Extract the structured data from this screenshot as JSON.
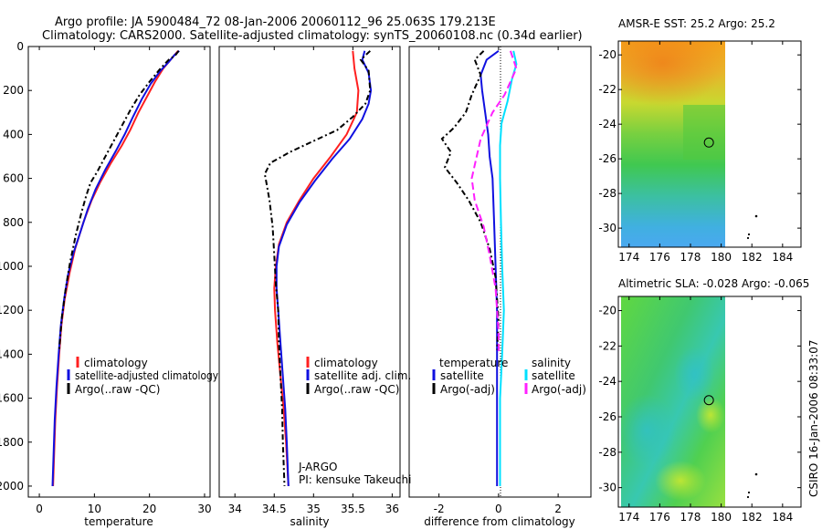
{
  "header": {
    "line1": "Argo profile: JA 5900484_72 08-Jan-2006 20060112_96 25.063S 179.213E",
    "line2": "Climatology: CARS2000. Satellite-adjusted climatology: synTS_20060108.nc (0.34d earlier)"
  },
  "side_label": "CSIRO 16-Jan-2006 08:33:07",
  "pi_block": {
    "line1": "J-ARGO",
    "line2": "PI: kensuke Takeuchi"
  },
  "colors": {
    "red": "#ff2020",
    "blue": "#1010e0",
    "black": "#000000",
    "cyan": "#00e0ff",
    "magenta": "#ff20ff"
  },
  "chart_data": [
    {
      "type": "line",
      "id": "temperature",
      "xlabel": "temperature",
      "ylabel": "",
      "xlim": [
        -2,
        31
      ],
      "ylim": [
        2050,
        0
      ],
      "xticks": [
        0,
        10,
        20,
        30
      ],
      "yticks": [
        0,
        200,
        400,
        600,
        800,
        1000,
        1200,
        1400,
        1600,
        1800,
        2000
      ],
      "legend": [
        "climatology",
        "satellite-adjusted climatology",
        "Argo(..raw -QC)"
      ],
      "series": [
        {
          "name": "climatology",
          "color": "red",
          "dash": "",
          "points": [
            [
              25.2,
              20
            ],
            [
              24.5,
              40
            ],
            [
              23.5,
              70
            ],
            [
              22.5,
              100
            ],
            [
              21,
              160
            ],
            [
              19.5,
              230
            ],
            [
              18,
              300
            ],
            [
              16.5,
              380
            ],
            [
              15,
              450
            ],
            [
              13,
              530
            ],
            [
              11,
              620
            ],
            [
              9.5,
              700
            ],
            [
              8,
              800
            ],
            [
              6.5,
              920
            ],
            [
              5.5,
              1030
            ],
            [
              4.6,
              1150
            ],
            [
              4,
              1270
            ],
            [
              3.6,
              1400
            ],
            [
              3.2,
              1550
            ],
            [
              2.9,
              1700
            ],
            [
              2.7,
              1850
            ],
            [
              2.5,
              2000
            ]
          ]
        },
        {
          "name": "satellite-adjusted climatology",
          "color": "blue",
          "dash": "",
          "points": [
            [
              25.4,
              20
            ],
            [
              24.5,
              40
            ],
            [
              23.5,
              70
            ],
            [
              22,
              110
            ],
            [
              20.2,
              170
            ],
            [
              18.6,
              240
            ],
            [
              17,
              320
            ],
            [
              15.5,
              400
            ],
            [
              14,
              470
            ],
            [
              12,
              560
            ],
            [
              10.2,
              650
            ],
            [
              8.8,
              740
            ],
            [
              7.5,
              840
            ],
            [
              6.2,
              940
            ],
            [
              5.2,
              1040
            ],
            [
              4.5,
              1150
            ],
            [
              3.9,
              1270
            ],
            [
              3.5,
              1400
            ],
            [
              3.1,
              1550
            ],
            [
              2.8,
              1700
            ],
            [
              2.6,
              1850
            ],
            [
              2.4,
              2000
            ]
          ]
        },
        {
          "name": "Argo(..raw -QC)",
          "color": "black",
          "dash": "6,3,2,3",
          "points": [
            [
              25.3,
              20
            ],
            [
              24.7,
              40
            ],
            [
              23.5,
              60
            ],
            [
              22,
              100
            ],
            [
              20,
              160
            ],
            [
              18.2,
              220
            ],
            [
              16.5,
              290
            ],
            [
              15,
              360
            ],
            [
              13.5,
              430
            ],
            [
              12,
              500
            ],
            [
              10.5,
              570
            ],
            [
              9.3,
              620
            ],
            [
              8.5,
              680
            ],
            [
              7.6,
              760
            ],
            [
              6.6,
              860
            ],
            [
              5.6,
              980
            ],
            [
              4.8,
              1100
            ],
            [
              4.1,
              1230
            ],
            [
              3.6,
              1380
            ]
          ]
        }
      ]
    },
    {
      "type": "line",
      "id": "salinity",
      "xlabel": "salinity",
      "ylabel": "",
      "xlim": [
        33.8,
        36.1
      ],
      "ylim": [
        2050,
        0
      ],
      "xticks": [
        34,
        34.5,
        35,
        35.5,
        36
      ],
      "yticks": [],
      "legend": [
        "climatology",
        "satellite adj. clim.",
        "Argo(..raw -QC)"
      ],
      "series": [
        {
          "name": "climatology",
          "color": "red",
          "dash": "",
          "points": [
            [
              35.5,
              20
            ],
            [
              35.52,
              100
            ],
            [
              35.57,
              200
            ],
            [
              35.55,
              300
            ],
            [
              35.42,
              400
            ],
            [
              35.22,
              500
            ],
            [
              35.0,
              600
            ],
            [
              34.82,
              700
            ],
            [
              34.66,
              800
            ],
            [
              34.56,
              900
            ],
            [
              34.52,
              1000
            ],
            [
              34.5,
              1100
            ],
            [
              34.51,
              1200
            ],
            [
              34.54,
              1350
            ],
            [
              34.58,
              1500
            ],
            [
              34.62,
              1650
            ],
            [
              34.65,
              1800
            ],
            [
              34.68,
              2000
            ]
          ]
        },
        {
          "name": "satellite adj. clim.",
          "color": "blue",
          "dash": "",
          "points": [
            [
              35.65,
              20
            ],
            [
              35.62,
              60
            ],
            [
              35.7,
              120
            ],
            [
              35.73,
              200
            ],
            [
              35.7,
              260
            ],
            [
              35.62,
              330
            ],
            [
              35.46,
              420
            ],
            [
              35.24,
              510
            ],
            [
              35.02,
              610
            ],
            [
              34.82,
              710
            ],
            [
              34.66,
              810
            ],
            [
              34.56,
              910
            ],
            [
              34.53,
              1000
            ],
            [
              34.53,
              1100
            ],
            [
              34.55,
              1200
            ],
            [
              34.58,
              1350
            ],
            [
              34.61,
              1500
            ],
            [
              34.64,
              1650
            ],
            [
              34.66,
              1800
            ],
            [
              34.68,
              2000
            ]
          ]
        },
        {
          "name": "Argo(..raw -QC)",
          "color": "black",
          "dash": "6,3,2,3",
          "points": [
            [
              35.72,
              20
            ],
            [
              35.6,
              60
            ],
            [
              35.7,
              110
            ],
            [
              35.72,
              200
            ],
            [
              35.66,
              260
            ],
            [
              35.5,
              320
            ],
            [
              35.3,
              380
            ],
            [
              35.0,
              430
            ],
            [
              34.7,
              480
            ],
            [
              34.45,
              530
            ],
            [
              34.38,
              580
            ],
            [
              34.4,
              620
            ],
            [
              34.44,
              700
            ],
            [
              34.48,
              820
            ],
            [
              34.5,
              950
            ],
            [
              34.52,
              1080
            ],
            [
              34.55,
              1200
            ],
            [
              34.56,
              1350
            ],
            [
              34.58,
              1500
            ],
            [
              34.6,
              1650
            ],
            [
              34.61,
              1800
            ],
            [
              34.63,
              2000
            ]
          ]
        }
      ]
    },
    {
      "type": "line",
      "id": "difference",
      "xlabel": "difference from climatology",
      "ylabel": "",
      "xlim": [
        -3,
        3.1
      ],
      "ylim": [
        2050,
        0
      ],
      "xticks": [
        -2,
        0,
        2
      ],
      "yticks": [],
      "legend_titles": [
        "temperature",
        "salinity"
      ],
      "legend": [
        "satellite",
        "Argo(-adj)",
        "satellite",
        "Argo(-adj)"
      ],
      "series": [
        {
          "name": "satellite",
          "group": "temperature",
          "color": "blue",
          "dash": "",
          "points": [
            [
              0,
              20
            ],
            [
              -0.4,
              60
            ],
            [
              -0.6,
              130
            ],
            [
              -0.55,
              200
            ],
            [
              -0.45,
              300
            ],
            [
              -0.35,
              400
            ],
            [
              -0.3,
              500
            ],
            [
              -0.2,
              600
            ],
            [
              -0.15,
              800
            ],
            [
              -0.1,
              1000
            ],
            [
              -0.05,
              1200
            ],
            [
              -0.05,
              1500
            ],
            [
              -0.05,
              2000
            ]
          ]
        },
        {
          "name": "Argo(-adj)",
          "group": "temperature",
          "color": "black",
          "dash": "6,3,2,3",
          "points": [
            [
              -0.5,
              20
            ],
            [
              -0.8,
              60
            ],
            [
              -0.6,
              130
            ],
            [
              -0.9,
              220
            ],
            [
              -1.1,
              300
            ],
            [
              -1.5,
              370
            ],
            [
              -1.9,
              420
            ],
            [
              -1.6,
              480
            ],
            [
              -1.8,
              550
            ],
            [
              -1.4,
              620
            ],
            [
              -1.0,
              700
            ],
            [
              -0.6,
              800
            ],
            [
              -0.3,
              920
            ],
            [
              -0.1,
              1050
            ],
            [
              0,
              1250
            ],
            [
              -0.05,
              1380
            ]
          ]
        },
        {
          "name": "satellite",
          "group": "salinity",
          "color": "cyan",
          "dash": "",
          "points": [
            [
              0.5,
              20
            ],
            [
              0.6,
              80
            ],
            [
              0.45,
              150
            ],
            [
              0.3,
              250
            ],
            [
              0.1,
              350
            ],
            [
              0.05,
              450
            ],
            [
              0.05,
              600
            ],
            [
              0.08,
              800
            ],
            [
              0.12,
              1000
            ],
            [
              0.18,
              1200
            ],
            [
              0.12,
              1400
            ],
            [
              0.05,
              1600
            ],
            [
              0.05,
              2000
            ]
          ]
        },
        {
          "name": "Argo(-adj)",
          "group": "salinity",
          "color": "magenta",
          "dash": "8,4",
          "points": [
            [
              0.4,
              20
            ],
            [
              0.6,
              100
            ],
            [
              0.2,
              220
            ],
            [
              -0.2,
              300
            ],
            [
              -0.6,
              420
            ],
            [
              -0.9,
              600
            ],
            [
              -0.8,
              700
            ],
            [
              -0.5,
              820
            ],
            [
              -0.3,
              950
            ],
            [
              -0.1,
              1100
            ],
            [
              0,
              1300
            ],
            [
              0,
              1400
            ]
          ]
        }
      ]
    },
    {
      "type": "heatmap",
      "id": "sst_map",
      "title": "AMSR-E SST: 25.2 Argo: 25.2",
      "xlim": [
        173.3,
        185.2
      ],
      "ylim": [
        -31.1,
        -19.2
      ],
      "xticks": [
        174,
        176,
        178,
        180,
        182,
        184
      ],
      "yticks": [
        -20,
        -22,
        -24,
        -26,
        -28,
        -30
      ],
      "profile_marker": {
        "lon": 179.2,
        "lat": -25.06
      }
    },
    {
      "type": "heatmap",
      "id": "sla_map",
      "title": "Altimetric SLA: -0.028 Argo: -0.065",
      "xlim": [
        173.3,
        185.2
      ],
      "ylim": [
        -31.1,
        -19.2
      ],
      "xticks": [
        174,
        176,
        178,
        180,
        182,
        184
      ],
      "yticks": [
        -20,
        -22,
        -24,
        -26,
        -28,
        -30
      ],
      "profile_marker": {
        "lon": 179.2,
        "lat": -25.06
      }
    }
  ]
}
